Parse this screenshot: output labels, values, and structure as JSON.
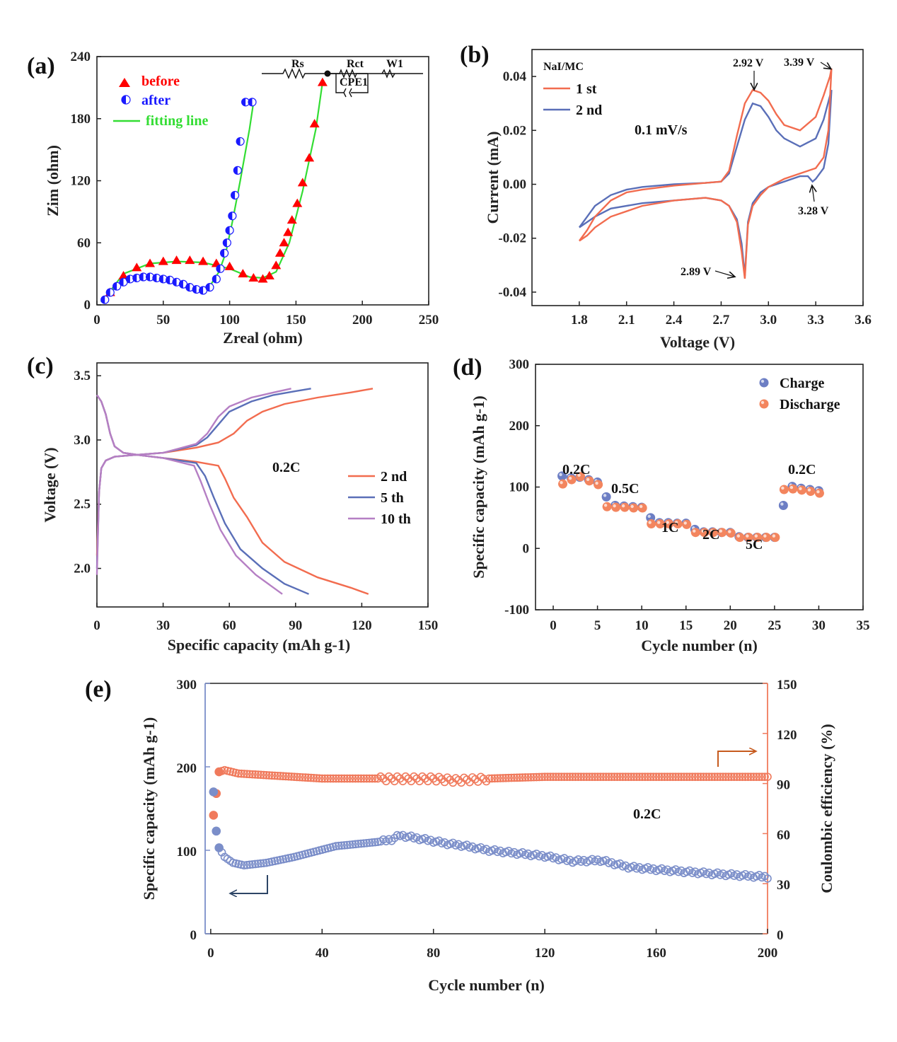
{
  "colors": {
    "red": "#ff0000",
    "blue": "#1a1aff",
    "green": "#33dd33",
    "orange": "#f26c4f",
    "slate": "#5a6fb8",
    "purple": "#b57fc4",
    "ball_blue": "#6c7ec4",
    "ball_orange": "#f3855e",
    "e_blue": "#7b8ec9",
    "e_orange": "#f07a5c",
    "arrow_navy": "#2d4566",
    "arrow_orange": "#c65a1e"
  },
  "chart_data": [
    {
      "id": "a",
      "type": "scatter",
      "panel_label": "(a)",
      "xlabel": "Zreal (ohm)",
      "ylabel": "Zim (ohm)",
      "xlim": [
        0,
        250
      ],
      "ylim": [
        0,
        240
      ],
      "xticks": [
        "0",
        "50",
        "100",
        "150",
        "200",
        "250"
      ],
      "yticks": [
        "0",
        "60",
        "120",
        "180",
        "240"
      ],
      "legend": [
        "before",
        "after",
        "fitting line"
      ],
      "circuit_labels": [
        "Rs",
        "Rct",
        "W1",
        "CPE1"
      ],
      "series": [
        {
          "name": "before",
          "marker": "triangle",
          "x": [
            10,
            20,
            30,
            40,
            50,
            60,
            70,
            80,
            90,
            100,
            110,
            118,
            125,
            130,
            135,
            138,
            141,
            144,
            147,
            151,
            155,
            160,
            164,
            170
          ],
          "y": [
            12,
            28,
            36,
            40,
            42,
            43,
            43,
            42,
            40,
            37,
            30,
            26,
            25,
            28,
            38,
            50,
            60,
            70,
            82,
            98,
            118,
            142,
            175,
            215
          ]
        },
        {
          "name": "after",
          "marker": "half-circle",
          "x": [
            6,
            10,
            15,
            20,
            25,
            30,
            35,
            40,
            45,
            50,
            55,
            60,
            65,
            70,
            75,
            80,
            85,
            90,
            93,
            96,
            98,
            100,
            102,
            104,
            106,
            108,
            112,
            117
          ],
          "y": [
            5,
            12,
            18,
            22,
            25,
            26,
            27,
            27,
            26,
            25,
            24,
            22,
            20,
            17,
            15,
            14,
            17,
            25,
            35,
            50,
            60,
            72,
            86,
            106,
            130,
            158,
            196,
            196
          ]
        },
        {
          "name": "before fit",
          "marker": "line",
          "x": [
            5,
            20,
            40,
            60,
            80,
            100,
            115,
            125,
            135,
            145,
            155,
            165,
            170
          ],
          "y": [
            5,
            30,
            40,
            42,
            41,
            35,
            27,
            26,
            32,
            60,
            110,
            170,
            215
          ]
        },
        {
          "name": "after fit",
          "marker": "line",
          "x": [
            3,
            15,
            30,
            45,
            60,
            70,
            78,
            85,
            92,
            97,
            102,
            108,
            115,
            118
          ],
          "y": [
            3,
            18,
            25,
            27,
            24,
            18,
            14,
            18,
            32,
            50,
            80,
            120,
            170,
            196
          ]
        }
      ]
    },
    {
      "id": "b",
      "type": "line",
      "panel_label": "(b)",
      "xlabel": "Voltage (V)",
      "ylabel": "Current (mA)",
      "xlim": [
        1.5,
        3.6
      ],
      "ylim": [
        -0.045,
        0.05
      ],
      "xticks": [
        "1.8",
        "2.1",
        "2.4",
        "2.7",
        "3.0",
        "3.3",
        "3.6"
      ],
      "yticks": [
        "-0.04",
        "-0.02",
        "0.00",
        "0.02",
        "0.04"
      ],
      "legend_title": "NaI/MC",
      "legend": [
        "1 st",
        "2 nd"
      ],
      "annotation": "0.1 mV/s",
      "peaks": [
        "2.92 V",
        "3.39 V",
        "3.28 V",
        "2.89 V"
      ],
      "series": [
        {
          "name": "1 st",
          "x": [
            1.8,
            1.85,
            1.9,
            2.0,
            2.1,
            2.2,
            2.4,
            2.6,
            2.7,
            2.75,
            2.8,
            2.85,
            2.9,
            2.95,
            3.0,
            3.05,
            3.1,
            3.2,
            3.3,
            3.35,
            3.39,
            3.4,
            3.38,
            3.35,
            3.3,
            3.25,
            3.2,
            3.1,
            3.0,
            2.95,
            2.9,
            2.87,
            2.85,
            2.83,
            2.8,
            2.75,
            2.7,
            2.6,
            2.4,
            2.2,
            2.0,
            1.9,
            1.85,
            1.8
          ],
          "y": [
            -0.021,
            -0.017,
            -0.012,
            -0.006,
            -0.003,
            -0.002,
            -0.0005,
            0.0005,
            0.001,
            0.005,
            0.018,
            0.03,
            0.035,
            0.034,
            0.031,
            0.026,
            0.022,
            0.02,
            0.025,
            0.033,
            0.04,
            0.043,
            0.02,
            0.01,
            0.006,
            0.005,
            0.004,
            0.002,
            -0.001,
            -0.004,
            -0.008,
            -0.015,
            -0.035,
            -0.025,
            -0.014,
            -0.008,
            -0.006,
            -0.005,
            -0.006,
            -0.008,
            -0.012,
            -0.016,
            -0.019,
            -0.021
          ]
        },
        {
          "name": "2 nd",
          "x": [
            1.8,
            1.85,
            1.9,
            2.0,
            2.1,
            2.2,
            2.4,
            2.6,
            2.7,
            2.75,
            2.8,
            2.85,
            2.9,
            2.95,
            3.0,
            3.05,
            3.1,
            3.2,
            3.3,
            3.35,
            3.4,
            3.38,
            3.35,
            3.3,
            3.28,
            3.25,
            3.2,
            3.1,
            3.0,
            2.95,
            2.9,
            2.87,
            2.85,
            2.83,
            2.8,
            2.75,
            2.7,
            2.6,
            2.4,
            2.2,
            2.0,
            1.9,
            1.85,
            1.8
          ],
          "y": [
            -0.016,
            -0.012,
            -0.008,
            -0.004,
            -0.002,
            -0.001,
            0.0,
            0.0005,
            0.001,
            0.004,
            0.014,
            0.024,
            0.03,
            0.029,
            0.025,
            0.02,
            0.017,
            0.014,
            0.017,
            0.024,
            0.035,
            0.015,
            0.006,
            0.002,
            0.001,
            0.003,
            0.003,
            0.001,
            -0.001,
            -0.003,
            -0.007,
            -0.014,
            -0.034,
            -0.022,
            -0.013,
            -0.008,
            -0.006,
            -0.005,
            -0.006,
            -0.007,
            -0.009,
            -0.012,
            -0.014,
            -0.016
          ]
        }
      ]
    },
    {
      "id": "c",
      "type": "line",
      "panel_label": "(c)",
      "xlabel": "Specific capacity (mAh g-1)",
      "ylabel": "Voltage (V)",
      "xlim": [
        0,
        150
      ],
      "ylim": [
        1.7,
        3.6
      ],
      "xticks": [
        "0",
        "30",
        "60",
        "90",
        "120",
        "150"
      ],
      "yticks": [
        "2.0",
        "2.5",
        "3.0",
        "3.5"
      ],
      "legend": [
        "2 nd",
        "5 th",
        "10 th"
      ],
      "annotation": "0.2C",
      "series": [
        {
          "name": "2 nd charge",
          "x": [
            0,
            1,
            2,
            4,
            8,
            15,
            30,
            45,
            55,
            62,
            68,
            75,
            85,
            100,
            115,
            125
          ],
          "y": [
            2.1,
            2.6,
            2.78,
            2.84,
            2.87,
            2.88,
            2.9,
            2.94,
            2.98,
            3.05,
            3.15,
            3.22,
            3.28,
            3.33,
            3.37,
            3.4
          ]
        },
        {
          "name": "2 nd discharge",
          "x": [
            0,
            2,
            4,
            6,
            8,
            12,
            20,
            30,
            45,
            55,
            58,
            62,
            68,
            75,
            85,
            100,
            115,
            123
          ],
          "y": [
            3.35,
            3.3,
            3.2,
            3.05,
            2.95,
            2.9,
            2.88,
            2.86,
            2.83,
            2.8,
            2.7,
            2.55,
            2.4,
            2.2,
            2.05,
            1.93,
            1.85,
            1.8
          ]
        },
        {
          "name": "5 th charge",
          "x": [
            0,
            1,
            2,
            4,
            8,
            15,
            30,
            45,
            50,
            55,
            60,
            70,
            80,
            90,
            97
          ],
          "y": [
            2.0,
            2.6,
            2.78,
            2.84,
            2.87,
            2.88,
            2.9,
            2.96,
            3.02,
            3.12,
            3.22,
            3.3,
            3.35,
            3.38,
            3.4
          ]
        },
        {
          "name": "5 th discharge",
          "x": [
            0,
            2,
            4,
            6,
            8,
            12,
            20,
            30,
            45,
            49,
            53,
            58,
            65,
            75,
            85,
            96
          ],
          "y": [
            3.35,
            3.3,
            3.2,
            3.05,
            2.95,
            2.9,
            2.88,
            2.86,
            2.82,
            2.72,
            2.55,
            2.35,
            2.15,
            2.0,
            1.88,
            1.8
          ]
        },
        {
          "name": "10 th charge",
          "x": [
            0,
            1,
            2,
            4,
            8,
            15,
            30,
            45,
            50,
            55,
            60,
            70,
            80,
            88
          ],
          "y": [
            1.95,
            2.6,
            2.78,
            2.84,
            2.87,
            2.88,
            2.9,
            2.97,
            3.05,
            3.18,
            3.26,
            3.33,
            3.37,
            3.4
          ]
        },
        {
          "name": "10 th discharge",
          "x": [
            0,
            2,
            4,
            6,
            8,
            12,
            20,
            30,
            44,
            47,
            51,
            56,
            63,
            72,
            84
          ],
          "y": [
            3.35,
            3.3,
            3.2,
            3.05,
            2.95,
            2.9,
            2.88,
            2.86,
            2.8,
            2.68,
            2.5,
            2.3,
            2.1,
            1.95,
            1.8
          ]
        }
      ]
    },
    {
      "id": "d",
      "type": "scatter",
      "panel_label": "(d)",
      "xlabel": "Cycle number (n)",
      "ylabel": "Specific capacity (mAh g-1)",
      "xlim": [
        -2,
        35
      ],
      "ylim": [
        -100,
        300
      ],
      "xticks": [
        "0",
        "5",
        "10",
        "15",
        "20",
        "25",
        "30",
        "35"
      ],
      "yticks": [
        "-100",
        "0",
        "100",
        "200",
        "300"
      ],
      "legend": [
        "Charge",
        "Discharge"
      ],
      "rate_labels": [
        "0.2C",
        "0.5C",
        "1C",
        "2C",
        "5C",
        "0.2C"
      ],
      "series": [
        {
          "name": "Charge",
          "x": [
            1,
            2,
            3,
            4,
            5,
            6,
            7,
            8,
            9,
            10,
            11,
            12,
            13,
            14,
            15,
            16,
            17,
            18,
            19,
            20,
            21,
            22,
            23,
            24,
            25,
            26,
            27,
            28,
            29,
            30
          ],
          "y": [
            118,
            115,
            116,
            112,
            108,
            84,
            70,
            69,
            68,
            67,
            50,
            42,
            42,
            41,
            41,
            31,
            27,
            27,
            26,
            26,
            19,
            18,
            18,
            18,
            18,
            70,
            101,
            98,
            96,
            94
          ]
        },
        {
          "name": "Discharge",
          "x": [
            1,
            2,
            3,
            4,
            5,
            6,
            7,
            8,
            9,
            10,
            11,
            12,
            13,
            14,
            15,
            16,
            17,
            18,
            19,
            20,
            21,
            22,
            23,
            24,
            25,
            26,
            27,
            28,
            29,
            30
          ],
          "y": [
            105,
            112,
            117,
            110,
            104,
            68,
            67,
            67,
            66,
            66,
            40,
            40,
            40,
            40,
            39,
            26,
            26,
            26,
            26,
            25,
            18,
            18,
            18,
            18,
            18,
            96,
            97,
            95,
            93,
            90
          ]
        }
      ]
    },
    {
      "id": "e",
      "type": "scatter",
      "panel_label": "(e)",
      "xlabel": "Cycle number (n)",
      "ylabel_left": "Specific capacity (mAh g-1)",
      "ylabel_right": "Coulombic efficiency (%)",
      "xlim": [
        -2,
        200
      ],
      "ylim_left": [
        0,
        300
      ],
      "ylim_right": [
        0,
        150
      ],
      "xticks": [
        "0",
        "40",
        "80",
        "120",
        "160",
        "200"
      ],
      "yticks_left": [
        "0",
        "100",
        "200",
        "300"
      ],
      "yticks_right": [
        "0",
        "30",
        "60",
        "90",
        "120",
        "150"
      ],
      "annotation": "0.2C",
      "capacity_keypoints": {
        "x": [
          1,
          2,
          3,
          5,
          8,
          12,
          20,
          30,
          45,
          60,
          65,
          68,
          75,
          85,
          90,
          100,
          120,
          130,
          140,
          150,
          160,
          180,
          200
        ],
        "y": [
          170,
          123,
          103,
          92,
          85,
          82,
          85,
          92,
          105,
          110,
          113,
          118,
          114,
          108,
          106,
          100,
          93,
          87,
          88,
          80,
          77,
          72,
          68
        ]
      },
      "efficiency_keypoints": {
        "x": [
          1,
          3,
          5,
          10,
          20,
          40,
          60,
          80,
          88,
          100,
          120,
          140,
          160,
          180,
          200
        ],
        "y": [
          71,
          97,
          98,
          96,
          95,
          93,
          93,
          93,
          92,
          93,
          94,
          94,
          94,
          94,
          94
        ]
      }
    }
  ]
}
